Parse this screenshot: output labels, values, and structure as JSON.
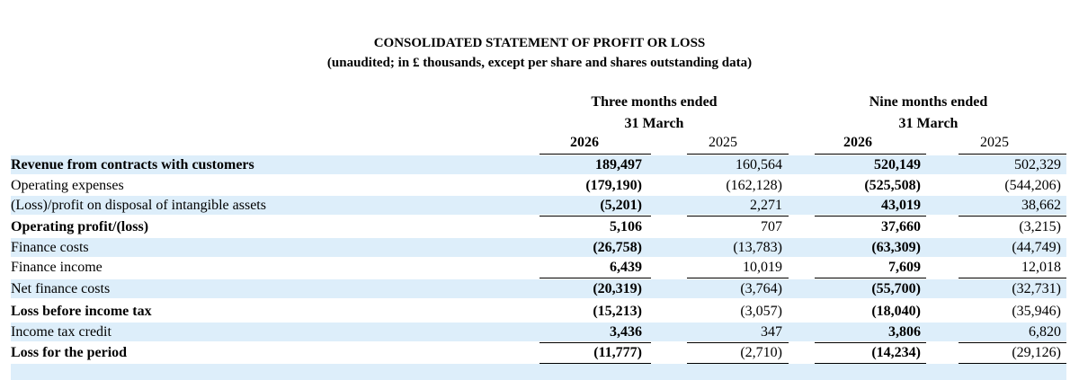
{
  "title": "CONSOLIDATED STATEMENT OF PROFIT OR LOSS",
  "subtitle": "(unaudited; in £ thousands, except per share and shares outstanding data)",
  "periods": [
    {
      "line1": "Three months ended",
      "line2": "31 March",
      "years": [
        "2026",
        "2025"
      ]
    },
    {
      "line1": "Nine months ended",
      "line2": "31 March",
      "years": [
        "2026",
        "2025"
      ]
    }
  ],
  "rows": [
    {
      "label": "Revenue from contracts with customers",
      "bold": true,
      "values": [
        "189,497",
        "160,564",
        "520,149",
        "502,329"
      ]
    },
    {
      "label": "Operating expenses",
      "bold": false,
      "values": [
        "(179,190)",
        "(162,128)",
        "(525,508)",
        "(544,206)"
      ]
    },
    {
      "label": "(Loss)/profit on disposal of intangible assets",
      "bold": false,
      "values": [
        "(5,201)",
        "2,271",
        "43,019",
        "38,662"
      ]
    },
    {
      "label": "Operating profit/(loss)",
      "bold": true,
      "values": [
        "5,106",
        "707",
        "37,660",
        "(3,215)"
      ]
    },
    {
      "label": "Finance costs",
      "bold": false,
      "values": [
        "(26,758)",
        "(13,783)",
        "(63,309)",
        "(44,749)"
      ]
    },
    {
      "label": "Finance income",
      "bold": false,
      "values": [
        "6,439",
        "10,019",
        "7,609",
        "12,018"
      ]
    },
    {
      "label": "Net finance costs",
      "bold": false,
      "values": [
        "(20,319)",
        "(3,764)",
        "(55,700)",
        "(32,731)"
      ]
    },
    {
      "label": "Loss before income tax",
      "bold": true,
      "values": [
        "(15,213)",
        "(3,057)",
        "(18,040)",
        "(35,946)"
      ]
    },
    {
      "label": "Income tax credit",
      "bold": false,
      "values": [
        "3,436",
        "347",
        "3,806",
        "6,820"
      ]
    },
    {
      "label": "Loss for the period",
      "bold": true,
      "values": [
        "(11,777)",
        "(2,710)",
        "(14,234)",
        "(29,126)"
      ]
    }
  ]
}
